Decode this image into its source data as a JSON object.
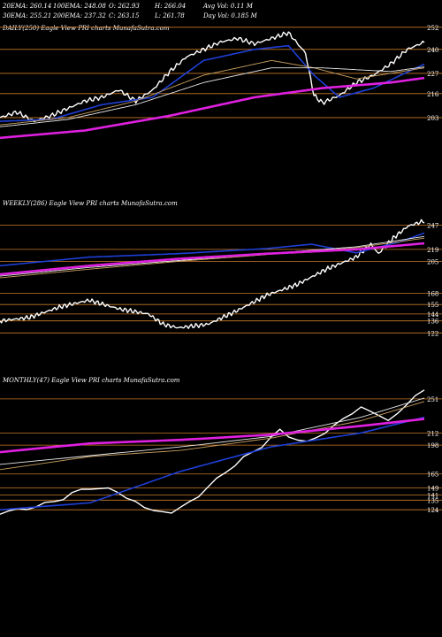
{
  "header": {
    "row1": [
      {
        "key": "ema20",
        "text": "20EMA: 260.14"
      },
      {
        "key": "ema100",
        "text": "100EMA: 248.08"
      },
      {
        "key": "open",
        "text": "O: 262.93"
      },
      {
        "key": "high",
        "text": "H: 266.04"
      },
      {
        "key": "avgvol",
        "text": "Avg Vol: 0.11 M"
      }
    ],
    "row2": [
      {
        "key": "ema30",
        "text": "30EMA: 255.21"
      },
      {
        "key": "ema200",
        "text": "200EMA: 237.32"
      },
      {
        "key": "close",
        "text": "C: 263.15"
      },
      {
        "key": "low",
        "text": "L: 261.78"
      },
      {
        "key": "dayvol",
        "text": "Day Vol: 0.185 M"
      }
    ]
  },
  "colors": {
    "background": "#000000",
    "price": "#ffffff",
    "ema_fast": "#1e3fd6",
    "ema_slow": "#e020e0",
    "ema_mid1": "#c8a060",
    "ema_mid2": "#e8e8e8",
    "level_line": "#c87a28"
  },
  "chart_data": [
    {
      "type": "line",
      "title": "DAILY(250) Eagle  View  PRI charts MunafaSutra.com",
      "y_ticks": [
        252,
        240,
        227,
        216,
        203
      ],
      "ylim": [
        190,
        262
      ],
      "n": 250,
      "series": [
        {
          "role": "price",
          "anchors": [
            [
              0,
              203
            ],
            [
              10,
              206
            ],
            [
              20,
              201
            ],
            [
              30,
              204
            ],
            [
              40,
              208
            ],
            [
              50,
              212
            ],
            [
              60,
              214
            ],
            [
              70,
              218
            ],
            [
              80,
              212
            ],
            [
              90,
              218
            ],
            [
              100,
              228
            ],
            [
              110,
              236
            ],
            [
              120,
              240
            ],
            [
              130,
              244
            ],
            [
              140,
              246
            ],
            [
              150,
              243
            ],
            [
              160,
              246
            ],
            [
              170,
              249
            ],
            [
              180,
              238
            ],
            [
              185,
              215
            ],
            [
              190,
              211
            ],
            [
              200,
              215
            ],
            [
              210,
              222
            ],
            [
              220,
              226
            ],
            [
              230,
              232
            ],
            [
              240,
              240
            ],
            [
              250,
              244
            ],
            [
              260,
              238
            ],
            [
              270,
              236
            ],
            [
              280,
              248
            ],
            [
              290,
              260
            ],
            [
              295,
              258
            ],
            [
              300,
              254
            ],
            [
              310,
              252
            ],
            [
              320,
              255
            ],
            [
              330,
              259
            ]
          ]
        },
        {
          "role": "ema_fast",
          "anchors": [
            [
              0,
              201
            ],
            [
              30,
              202
            ],
            [
              60,
              210
            ],
            [
              90,
              214
            ],
            [
              120,
              234
            ],
            [
              150,
              240
            ],
            [
              170,
              242
            ],
            [
              185,
              226
            ],
            [
              200,
              214
            ],
            [
              220,
              219
            ],
            [
              250,
              232
            ],
            [
              280,
              240
            ],
            [
              310,
              248
            ],
            [
              330,
              252
            ]
          ]
        },
        {
          "role": "ema_mid1",
          "anchors": [
            [
              0,
              199
            ],
            [
              40,
              203
            ],
            [
              80,
              212
            ],
            [
              120,
              226
            ],
            [
              160,
              234
            ],
            [
              185,
              230
            ],
            [
              210,
              224
            ],
            [
              250,
              230
            ],
            [
              290,
              240
            ],
            [
              330,
              248
            ]
          ]
        },
        {
          "role": "ema_mid2",
          "anchors": [
            [
              0,
              198
            ],
            [
              40,
              202
            ],
            [
              80,
              210
            ],
            [
              120,
              222
            ],
            [
              160,
              230
            ],
            [
              190,
              230
            ],
            [
              230,
              228
            ],
            [
              270,
              233
            ],
            [
              310,
              242
            ],
            [
              330,
              246
            ]
          ]
        },
        {
          "role": "ema_slow",
          "anchors": [
            [
              0,
              192
            ],
            [
              50,
              196
            ],
            [
              100,
              204
            ],
            [
              150,
              214
            ],
            [
              190,
              219
            ],
            [
              230,
              222
            ],
            [
              270,
              227
            ],
            [
              310,
              234
            ],
            [
              330,
              238
            ]
          ]
        }
      ]
    },
    {
      "type": "line",
      "title": "WEEKLY(286) Eagle  View  PRI charts MunafaSutra.com",
      "y_ticks": [
        247,
        219,
        205,
        168,
        155,
        144,
        136,
        122
      ],
      "ylim": [
        110,
        262
      ],
      "n": 286,
      "series": [
        {
          "role": "price",
          "anchors": [
            [
              0,
              136
            ],
            [
              20,
              140
            ],
            [
              40,
              152
            ],
            [
              60,
              160
            ],
            [
              80,
              150
            ],
            [
              100,
              144
            ],
            [
              110,
              132
            ],
            [
              120,
              128
            ],
            [
              140,
              132
            ],
            [
              160,
              148
            ],
            [
              180,
              166
            ],
            [
              200,
              178
            ],
            [
              220,
              196
            ],
            [
              240,
              210
            ],
            [
              250,
              225
            ],
            [
              255,
              214
            ],
            [
              265,
              232
            ],
            [
              275,
              246
            ],
            [
              286,
              252
            ]
          ]
        },
        {
          "role": "ema_fast",
          "anchors": [
            [
              0,
              200
            ],
            [
              60,
              210
            ],
            [
              120,
              214
            ],
            [
              180,
              220
            ],
            [
              210,
              225
            ],
            [
              240,
              215
            ],
            [
              270,
              228
            ],
            [
              286,
              238
            ]
          ]
        },
        {
          "role": "ema_mid1",
          "anchors": [
            [
              0,
              186
            ],
            [
              60,
              196
            ],
            [
              120,
              205
            ],
            [
              180,
              213
            ],
            [
              240,
              221
            ],
            [
              286,
              232
            ]
          ]
        },
        {
          "role": "ema_mid2",
          "anchors": [
            [
              0,
              188
            ],
            [
              60,
              198
            ],
            [
              120,
              206
            ],
            [
              180,
              214
            ],
            [
              240,
              222
            ],
            [
              286,
              234
            ]
          ]
        },
        {
          "role": "ema_slow",
          "anchors": [
            [
              0,
              190
            ],
            [
              60,
              200
            ],
            [
              120,
              208
            ],
            [
              180,
              214
            ],
            [
              240,
              219
            ],
            [
              286,
              226
            ]
          ]
        }
      ]
    },
    {
      "type": "line",
      "title": "MONTHLY(47) Eagle  View  PRI charts MunafaSutra.com",
      "y_ticks": [
        251,
        212,
        198,
        165,
        149,
        141,
        135,
        124
      ],
      "ylim": [
        110,
        262
      ],
      "n": 47,
      "series": [
        {
          "role": "price",
          "anchors": [
            [
              0,
              120
            ],
            [
              5,
              130
            ],
            [
              10,
              150
            ],
            [
              13,
              145
            ],
            [
              16,
              126
            ],
            [
              19,
              120
            ],
            [
              22,
              140
            ],
            [
              25,
              168
            ],
            [
              28,
              190
            ],
            [
              31,
              214
            ],
            [
              34,
              200
            ],
            [
              37,
              220
            ],
            [
              40,
              242
            ],
            [
              43,
              226
            ],
            [
              47,
              262
            ]
          ]
        },
        {
          "role": "ema_fast",
          "anchors": [
            [
              0,
              124
            ],
            [
              10,
              132
            ],
            [
              20,
              168
            ],
            [
              30,
              196
            ],
            [
              40,
              212
            ],
            [
              47,
              230
            ]
          ]
        },
        {
          "role": "ema_mid1",
          "anchors": [
            [
              0,
              170
            ],
            [
              10,
              185
            ],
            [
              20,
              192
            ],
            [
              30,
              206
            ],
            [
              40,
              226
            ],
            [
              47,
              248
            ]
          ]
        },
        {
          "role": "ema_mid2",
          "anchors": [
            [
              0,
              176
            ],
            [
              10,
              186
            ],
            [
              20,
              196
            ],
            [
              30,
              208
            ],
            [
              40,
              230
            ],
            [
              47,
              252
            ]
          ]
        },
        {
          "role": "ema_slow",
          "anchors": [
            [
              0,
              190
            ],
            [
              10,
              200
            ],
            [
              20,
              204
            ],
            [
              30,
              210
            ],
            [
              40,
              220
            ],
            [
              47,
              228
            ]
          ]
        }
      ]
    }
  ]
}
